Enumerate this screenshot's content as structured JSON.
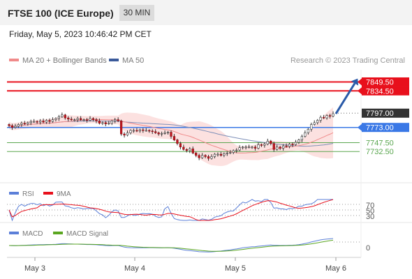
{
  "header": {
    "title": "FTSE 100 (ICE Europe)",
    "timeframe": "30 MIN"
  },
  "timestamp": "Friday, May 5, 2023 10:46:42 PM CET",
  "legend": {
    "ma20_label": "MA 20 + Bollinger Bands",
    "ma50_label": "MA 50",
    "copyright": "Research © 2023 Trading Central"
  },
  "colors": {
    "resistance": "#e8101c",
    "pivot": "#3a78e6",
    "support": "#5aa64f",
    "current": "#333333",
    "bollinger": "#f9c9c7",
    "ma50": "#7d8fb8",
    "ma20": "#f08a8a",
    "arrow": "#2a5aa8",
    "rsi": "#5b7fd8",
    "rsi_ma": "#e8101c",
    "macd": "#5b7fd8",
    "macd_signal": "#5aa620"
  },
  "rsi_panel": {
    "rsi_label": "RSI",
    "ma_label": "9MA",
    "levels": [
      "70",
      "50",
      "30"
    ]
  },
  "macd_panel": {
    "macd_label": "MACD",
    "signal_label": "MACD Signal",
    "zero_label": "0"
  },
  "chart_data": {
    "type": "candlestick",
    "price_range": [
      7680,
      7870
    ],
    "x_ticks": [
      "May 3",
      "May 4",
      "May 5",
      "May 6"
    ],
    "levels": [
      {
        "name": "resistance-2",
        "value": 7849.5,
        "label": "7849.50",
        "kind": "resistance"
      },
      {
        "name": "resistance-1",
        "value": 7834.5,
        "label": "7834.50",
        "kind": "resistance"
      },
      {
        "name": "current-price",
        "value": 7797.0,
        "label": "7797.00",
        "kind": "current"
      },
      {
        "name": "pivot",
        "value": 7773.0,
        "label": "7773.00",
        "kind": "pivot"
      },
      {
        "name": "support-1",
        "value": 7747.5,
        "label": "7747.50",
        "kind": "support"
      },
      {
        "name": "support-2",
        "value": 7732.5,
        "label": "7732.50",
        "kind": "support"
      }
    ],
    "closes": [
      7776,
      7773,
      7775,
      7778,
      7780,
      7779,
      7781,
      7783,
      7783,
      7782,
      7784,
      7782,
      7785,
      7783,
      7786,
      7788,
      7791,
      7794,
      7789,
      7787,
      7786,
      7786,
      7788,
      7786,
      7786,
      7785,
      7788,
      7786,
      7784,
      7780,
      7781,
      7779,
      7780,
      7784,
      7786,
      7784,
      7762,
      7760,
      7764,
      7768,
      7768,
      7767,
      7769,
      7768,
      7768,
      7767,
      7766,
      7764,
      7762,
      7763,
      7764,
      7765,
      7758,
      7752,
      7746,
      7740,
      7736,
      7734,
      7737,
      7730,
      7726,
      7722,
      7726,
      7724,
      7721,
      7724,
      7728,
      7728,
      7726,
      7729,
      7730,
      7731,
      7734,
      7735,
      7739,
      7740,
      7740,
      7740,
      7740,
      7738,
      7744,
      7743,
      7745,
      7750,
      7746,
      7736,
      7740,
      7738,
      7742,
      7741,
      7745,
      7744,
      7748,
      7752,
      7758,
      7764,
      7770,
      7778,
      7781,
      7785,
      7790,
      7789,
      7793,
      7792,
      7796
    ]
  }
}
